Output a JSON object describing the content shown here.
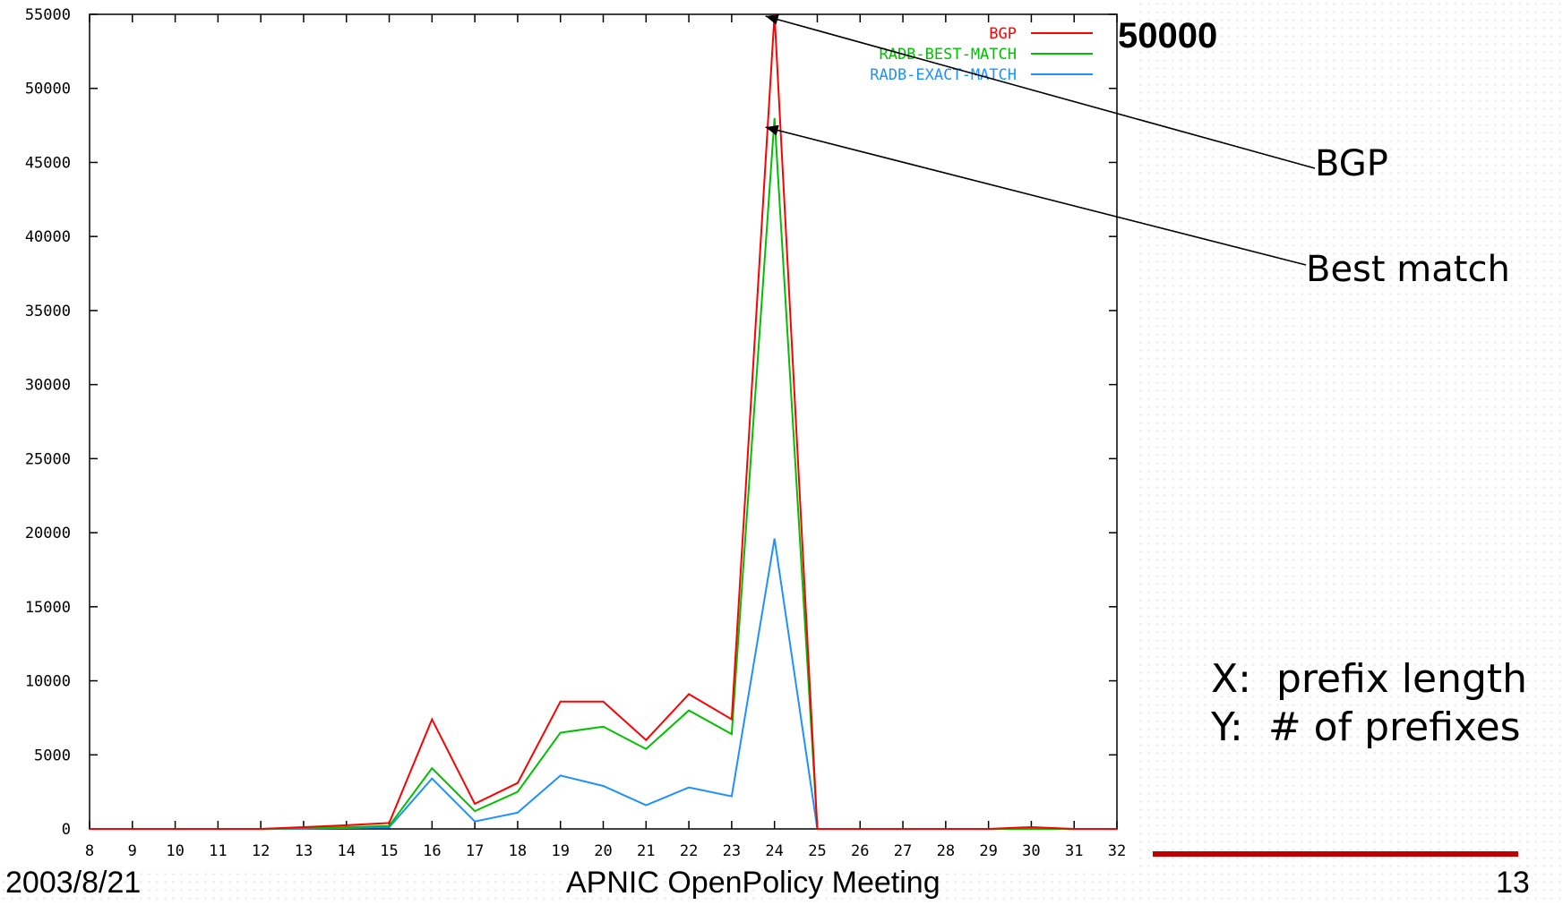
{
  "chart_data": {
    "type": "line",
    "x": [
      8,
      9,
      10,
      11,
      12,
      13,
      14,
      15,
      16,
      17,
      18,
      19,
      20,
      21,
      22,
      23,
      24,
      25,
      26,
      27,
      28,
      29,
      30,
      31,
      32
    ],
    "xlim": [
      8,
      32
    ],
    "ylim": [
      0,
      55000
    ],
    "yticks": [
      0,
      5000,
      10000,
      15000,
      20000,
      25000,
      30000,
      35000,
      40000,
      45000,
      50000,
      55000
    ],
    "xticks": [
      8,
      9,
      10,
      11,
      12,
      13,
      14,
      15,
      16,
      17,
      18,
      19,
      20,
      21,
      22,
      23,
      24,
      25,
      26,
      27,
      28,
      29,
      30,
      31,
      32
    ],
    "legend_position": "top-right",
    "grid": false,
    "series": [
      {
        "name": "BGP",
        "color": "#ff0000",
        "values": [
          0,
          0,
          0,
          0,
          0,
          120,
          250,
          400,
          7400,
          1700,
          3100,
          8600,
          8600,
          6000,
          9100,
          7400,
          55000,
          0,
          0,
          0,
          0,
          0,
          120,
          0,
          0
        ]
      },
      {
        "name": "RADB-BEST-MATCH",
        "color": "#00c000",
        "values": [
          0,
          0,
          0,
          0,
          0,
          60,
          120,
          200,
          4100,
          1200,
          2500,
          6500,
          6900,
          5400,
          8000,
          6400,
          48000,
          0,
          0,
          0,
          0,
          0,
          0,
          0,
          0
        ]
      },
      {
        "name": "RADB-EXACT-MATCH",
        "color": "#1e90ff",
        "values": [
          0,
          0,
          0,
          0,
          0,
          30,
          60,
          100,
          3400,
          500,
          1100,
          3600,
          2900,
          1600,
          2800,
          2200,
          19600,
          0,
          0,
          0,
          0,
          0,
          0,
          0,
          0
        ]
      }
    ]
  },
  "annotations": {
    "peak_label": "50000",
    "bgp_label": "BGP",
    "best_match_label": "Best match",
    "x_axis_note": "X:  prefix length",
    "y_axis_note": "Y:  # of prefixes",
    "bgp_target": {
      "x": 24,
      "y": 55000
    },
    "best_match_target": {
      "x": 24,
      "y": 47500
    }
  },
  "footer": {
    "date": "2003/8/21",
    "title": "APNIC OpenPolicy Meeting",
    "page": "13",
    "rule_color": "#c00000"
  }
}
